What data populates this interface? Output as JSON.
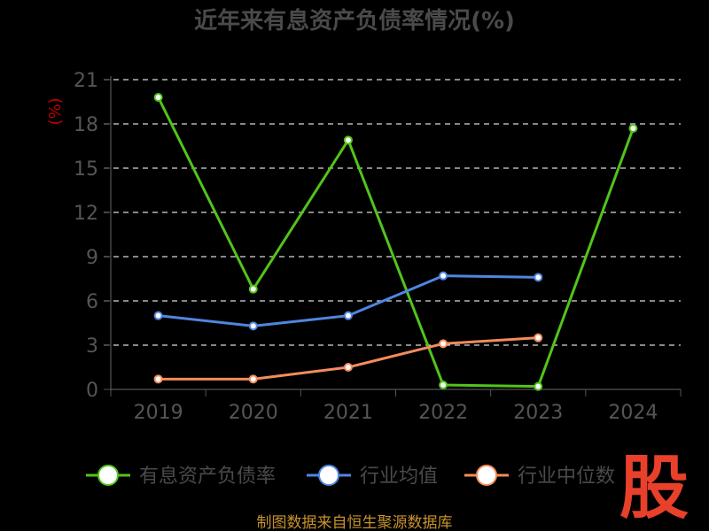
{
  "chart_data": {
    "type": "line",
    "title": "近年来有息资产负债率情况(%)",
    "unit_label": "(%)",
    "categories": [
      "2019",
      "2020",
      "2021",
      "2022",
      "2023",
      "2024"
    ],
    "ylim": [
      0,
      21
    ],
    "yticks": [
      0,
      3,
      6,
      9,
      12,
      15,
      18,
      21
    ],
    "grid": true,
    "legend_position": "bottom",
    "series": [
      {
        "name": "有息资产负债率",
        "color": "#52c41a",
        "values": [
          19.8,
          6.8,
          16.9,
          0.3,
          0.2,
          17.7
        ]
      },
      {
        "name": "行业均值",
        "color": "#4f86e0",
        "values": [
          5.0,
          4.3,
          5.0,
          7.7,
          7.6,
          null
        ]
      },
      {
        "name": "行业中位数",
        "color": "#f58c5b",
        "values": [
          0.7,
          0.7,
          1.5,
          3.1,
          3.5,
          null
        ]
      }
    ]
  },
  "footer": "制图数据来自恒生聚源数据库",
  "logo_text": "股"
}
